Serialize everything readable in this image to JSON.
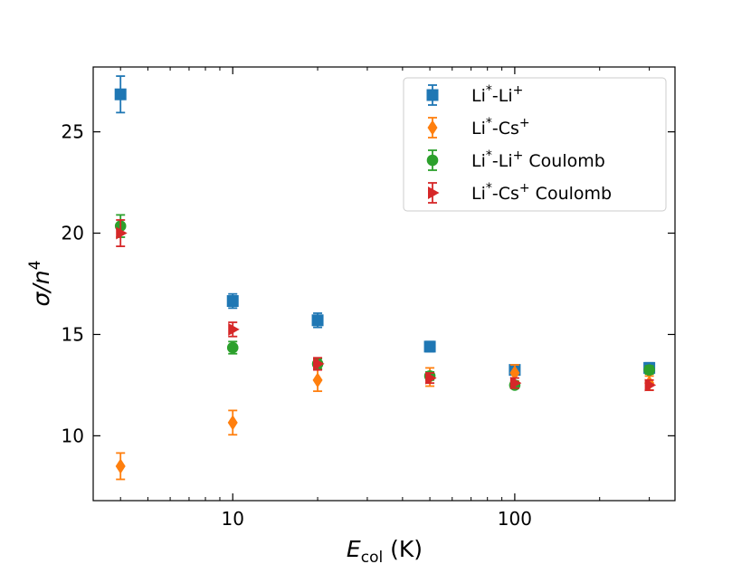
{
  "chart_data": {
    "type": "scatter",
    "x_scale": "log",
    "xlim": [
      3.2,
      370
    ],
    "ylim": [
      6.8,
      28.2
    ],
    "x_ticks": [
      {
        "value": 10,
        "label": "10"
      },
      {
        "value": 100,
        "label": "100"
      }
    ],
    "y_ticks": [
      {
        "value": 10,
        "label": "10"
      },
      {
        "value": 15,
        "label": "15"
      },
      {
        "value": 20,
        "label": "20"
      },
      {
        "value": 25,
        "label": "25"
      }
    ],
    "xlabel": {
      "symbol": "E",
      "subscript": "col",
      "unit": " (K)"
    },
    "ylabel": {
      "symbol": "σ/n",
      "superscript": "4"
    },
    "legend_position": "upper-right",
    "series": [
      {
        "name": "Li*-Li+",
        "legend": {
          "a": "Li",
          "a_sup": "*",
          "sep": "-",
          "b": "Li",
          "b_sup": "+",
          "suffix": ""
        },
        "marker": "square",
        "color": "#1f77b4",
        "points": [
          {
            "x": 4,
            "y": 26.85,
            "err": 0.9
          },
          {
            "x": 10,
            "y": 16.65,
            "err": 0.35
          },
          {
            "x": 20,
            "y": 15.7,
            "err": 0.35
          },
          {
            "x": 50,
            "y": 14.4,
            "err": 0.25
          },
          {
            "x": 100,
            "y": 13.25,
            "err": 0.2
          },
          {
            "x": 300,
            "y": 13.35,
            "err": 0.25
          }
        ]
      },
      {
        "name": "Li*-Cs+",
        "legend": {
          "a": "Li",
          "a_sup": "*",
          "sep": "-",
          "b": "Cs",
          "b_sup": "+",
          "suffix": ""
        },
        "marker": "diamond",
        "color": "#ff7f0e",
        "points": [
          {
            "x": 4,
            "y": 8.5,
            "err": 0.65
          },
          {
            "x": 10,
            "y": 10.65,
            "err": 0.6
          },
          {
            "x": 20,
            "y": 12.75,
            "err": 0.55
          },
          {
            "x": 50,
            "y": 12.9,
            "err": 0.45
          },
          {
            "x": 100,
            "y": 13.1,
            "err": 0.4
          },
          {
            "x": 300,
            "y": 12.6,
            "err": 0.35
          }
        ]
      },
      {
        "name": "Li*-Li+ Coulomb",
        "legend": {
          "a": "Li",
          "a_sup": "*",
          "sep": "-",
          "b": "Li",
          "b_sup": "+",
          "suffix": " Coulomb"
        },
        "marker": "circle",
        "color": "#2ca02c",
        "points": [
          {
            "x": 4,
            "y": 20.35,
            "err": 0.55
          },
          {
            "x": 10,
            "y": 14.35,
            "err": 0.3
          },
          {
            "x": 20,
            "y": 13.55,
            "err": 0.25
          },
          {
            "x": 50,
            "y": 12.95,
            "err": 0.2
          },
          {
            "x": 100,
            "y": 12.5,
            "err": 0.15
          },
          {
            "x": 300,
            "y": 13.25,
            "err": 0.2
          }
        ]
      },
      {
        "name": "Li*-Cs+ Coulomb",
        "legend": {
          "a": "Li",
          "a_sup": "*",
          "sep": "-",
          "b": "Cs",
          "b_sup": "+",
          "suffix": " Coulomb"
        },
        "marker": "triangle-right",
        "color": "#d62728",
        "points": [
          {
            "x": 4,
            "y": 20.0,
            "err": 0.65
          },
          {
            "x": 10,
            "y": 15.25,
            "err": 0.35
          },
          {
            "x": 20,
            "y": 13.55,
            "err": 0.3
          },
          {
            "x": 50,
            "y": 12.85,
            "err": 0.25
          },
          {
            "x": 100,
            "y": 12.6,
            "err": 0.25
          },
          {
            "x": 300,
            "y": 12.5,
            "err": 0.25
          }
        ]
      }
    ]
  }
}
